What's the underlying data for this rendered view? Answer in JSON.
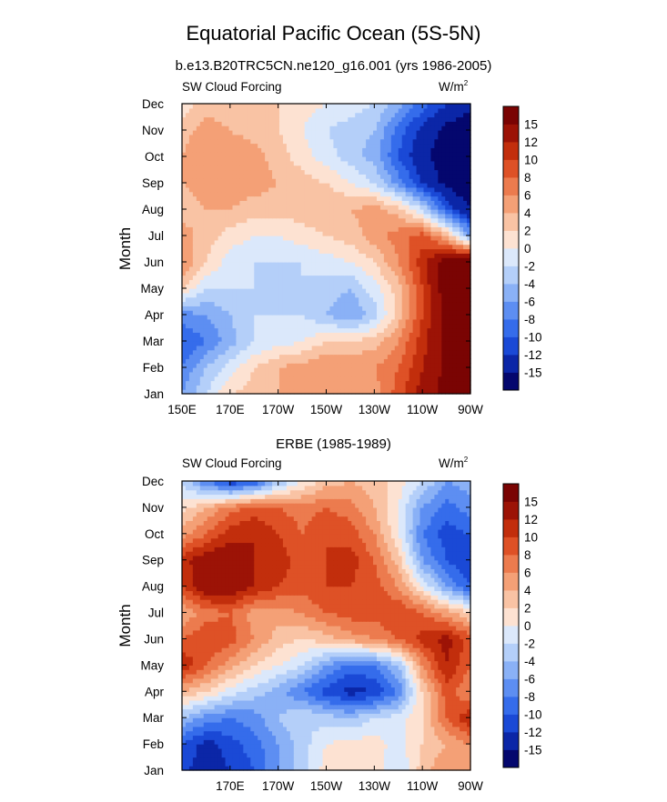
{
  "title": "Equatorial Pacific Ocean (5S-5N)",
  "subtitle": "b.e13.B20TRC5CN.ne120_g16.001 (yrs 1986-2005)",
  "colors": {
    "levels": [
      "#04076e",
      "#0b26a7",
      "#1a49d6",
      "#356ceb",
      "#5d8ef2",
      "#8ab1f6",
      "#b4cff9",
      "#dbe8fb",
      "#fde2d2",
      "#f9c3a4",
      "#f4a076",
      "#ec7b4e",
      "#de5126",
      "#c22e0c",
      "#9c1306",
      "#7a0403"
    ]
  },
  "chart_data": [
    {
      "type": "heatmap",
      "panel_title": "",
      "left_label": "SW Cloud Forcing",
      "right_label": "W/m",
      "right_label_sup": "2",
      "ylabel": "Month",
      "xlabel": "",
      "x_tick_labels": [
        "150E",
        "170E",
        "170W",
        "150W",
        "130W",
        "110W",
        "90W"
      ],
      "x_tick_lons": [
        150,
        170,
        190,
        210,
        230,
        250,
        270
      ],
      "xlim": [
        150,
        270
      ],
      "y_tick_labels": [
        "Jan",
        "Feb",
        "Mar",
        "Apr",
        "May",
        "Jun",
        "Jul",
        "Aug",
        "Sep",
        "Oct",
        "Nov",
        "Dec"
      ],
      "colorbar_labels": [
        "15",
        "12",
        "10",
        "8",
        "6",
        "4",
        "2",
        "0",
        "-2",
        "-4",
        "-6",
        "-8",
        "-10",
        "-12",
        "-15"
      ],
      "levels": [
        -15,
        -12,
        -10,
        -8,
        -6,
        -4,
        -2,
        0,
        2,
        4,
        6,
        8,
        10,
        12,
        15
      ],
      "lons": [
        150,
        160,
        170,
        180,
        190,
        200,
        210,
        220,
        230,
        240,
        250,
        260,
        270
      ],
      "values": [
        [
          -6,
          -2,
          2,
          3,
          4,
          4,
          5,
          4,
          5,
          9,
          13,
          16,
          18
        ],
        [
          -8,
          -4,
          -1,
          2,
          4,
          5,
          6,
          6,
          6,
          8,
          12,
          16,
          18
        ],
        [
          -10,
          -8,
          -5,
          -2,
          -1,
          0,
          2,
          2,
          3,
          6,
          11,
          16,
          18
        ],
        [
          -7,
          -6,
          -4,
          -2,
          -2,
          -2,
          -4,
          -6,
          -3,
          3,
          10,
          16,
          18
        ],
        [
          2,
          -2,
          -2,
          -2,
          -3,
          -2,
          -3,
          -4,
          -1,
          3,
          10,
          17,
          18
        ],
        [
          6,
          2,
          -1,
          -2,
          -2,
          -2,
          -1,
          0,
          2,
          6,
          11,
          17,
          18
        ],
        [
          5,
          3,
          1,
          0,
          0,
          1,
          2,
          3,
          5,
          7,
          9,
          4,
          -6
        ],
        [
          3,
          4,
          4,
          3,
          3,
          3,
          4,
          4,
          5,
          3,
          -2,
          -10,
          -15
        ],
        [
          4,
          5,
          5,
          5,
          4,
          3,
          2,
          0,
          -2,
          -7,
          -12,
          -16,
          -18
        ],
        [
          4,
          6,
          6,
          5,
          3,
          1,
          -1,
          -3,
          -5,
          -10,
          -14,
          -17,
          -18
        ],
        [
          3,
          5,
          4,
          3,
          2,
          0,
          -2,
          -3,
          -4,
          -9,
          -13,
          -16,
          -18
        ],
        [
          1,
          3,
          3,
          3,
          2,
          1,
          0,
          -1,
          -2,
          -5,
          -9,
          -12,
          -14
        ]
      ]
    },
    {
      "type": "heatmap",
      "panel_title": "ERBE (1985-1989)",
      "left_label": "SW Cloud Forcing",
      "right_label": "W/m",
      "right_label_sup": "2",
      "ylabel": "Month",
      "xlabel": "",
      "x_tick_labels": [
        "170E",
        "170W",
        "150W",
        "130W",
        "110W",
        "90W"
      ],
      "x_tick_lons": [
        170,
        190,
        210,
        230,
        250,
        270
      ],
      "xlim": [
        150,
        270
      ],
      "y_tick_labels": [
        "Jan",
        "Feb",
        "Mar",
        "Apr",
        "May",
        "Jun",
        "Jul",
        "Aug",
        "Sep",
        "Oct",
        "Nov",
        "Dec"
      ],
      "colorbar_labels": [
        "15",
        "12",
        "10",
        "8",
        "6",
        "4",
        "2",
        "0",
        "-2",
        "-4",
        "-6",
        "-8",
        "-10",
        "-12",
        "-15"
      ],
      "levels": [
        -15,
        -12,
        -10,
        -8,
        -6,
        -4,
        -2,
        0,
        2,
        4,
        6,
        8,
        10,
        12,
        15
      ],
      "lons": [
        150,
        160,
        170,
        180,
        190,
        200,
        210,
        220,
        230,
        240,
        250,
        260,
        270
      ],
      "values": [
        [
          -11,
          -14,
          -12,
          -10,
          -6,
          -3,
          1,
          2,
          1,
          -2,
          3,
          6,
          5
        ],
        [
          -10,
          -13,
          -11,
          -9,
          -6,
          -3,
          0,
          1,
          1,
          -1,
          2,
          4,
          6
        ],
        [
          -4,
          -7,
          -8,
          -7,
          -4,
          -2,
          -3,
          -4,
          -2,
          -1,
          2,
          8,
          12
        ],
        [
          4,
          2,
          -1,
          -3,
          -5,
          -8,
          -11,
          -13,
          -12,
          -8,
          2,
          9,
          6
        ],
        [
          12,
          8,
          5,
          2,
          0,
          -2,
          -6,
          -9,
          -8,
          -4,
          6,
          12,
          8
        ],
        [
          8,
          10,
          9,
          6,
          3,
          2,
          3,
          5,
          6,
          8,
          11,
          13,
          9
        ],
        [
          4,
          7,
          8,
          5,
          5,
          6,
          8,
          9,
          9,
          10,
          8,
          5,
          2
        ],
        [
          10,
          14,
          14,
          12,
          10,
          9,
          10,
          10,
          9,
          6,
          0,
          -6,
          -10
        ],
        [
          11,
          14,
          14,
          12,
          11,
          9,
          10,
          11,
          8,
          3,
          -6,
          -10,
          -12
        ],
        [
          5,
          8,
          11,
          12,
          10,
          8,
          10,
          9,
          6,
          0,
          -8,
          -11,
          -10
        ],
        [
          1,
          4,
          7,
          9,
          8,
          7,
          8,
          7,
          4,
          0,
          -6,
          -9,
          -7
        ],
        [
          -2,
          -8,
          -12,
          -10,
          -4,
          0,
          3,
          4,
          3,
          1,
          -2,
          -6,
          -5
        ]
      ]
    }
  ]
}
